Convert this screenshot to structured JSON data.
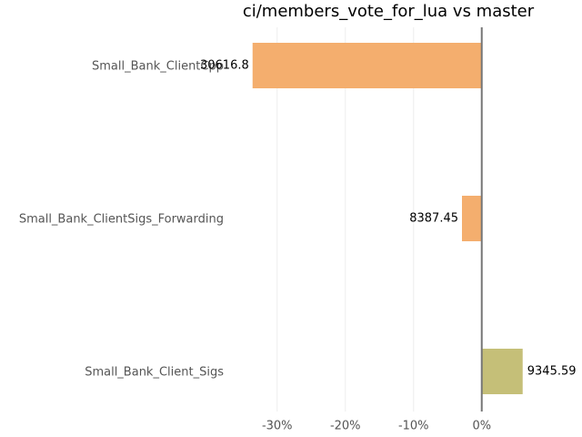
{
  "chart_data": {
    "type": "barh",
    "title": "ci/members_vote_for_lua vs master",
    "categories": [
      "Small_Bank_ClientCpp",
      "Small_Bank_ClientSigs_Forwarding",
      "Small_Bank_Client_Sigs"
    ],
    "values": [
      -33.6,
      -2.9,
      6.0
    ],
    "bar_labels": [
      30616.8,
      8387.45,
      9345.59
    ],
    "colors": [
      "#f4ae6e",
      "#f4ae6e",
      "#c5bf78"
    ],
    "xlim": [
      -37.3,
      14.7
    ],
    "xticks": [
      {
        "value": -30,
        "label": "-30%"
      },
      {
        "value": -20,
        "label": "-20%"
      },
      {
        "value": -10,
        "label": "-10%"
      },
      {
        "value": 0,
        "label": "0%"
      }
    ],
    "grid": true
  }
}
